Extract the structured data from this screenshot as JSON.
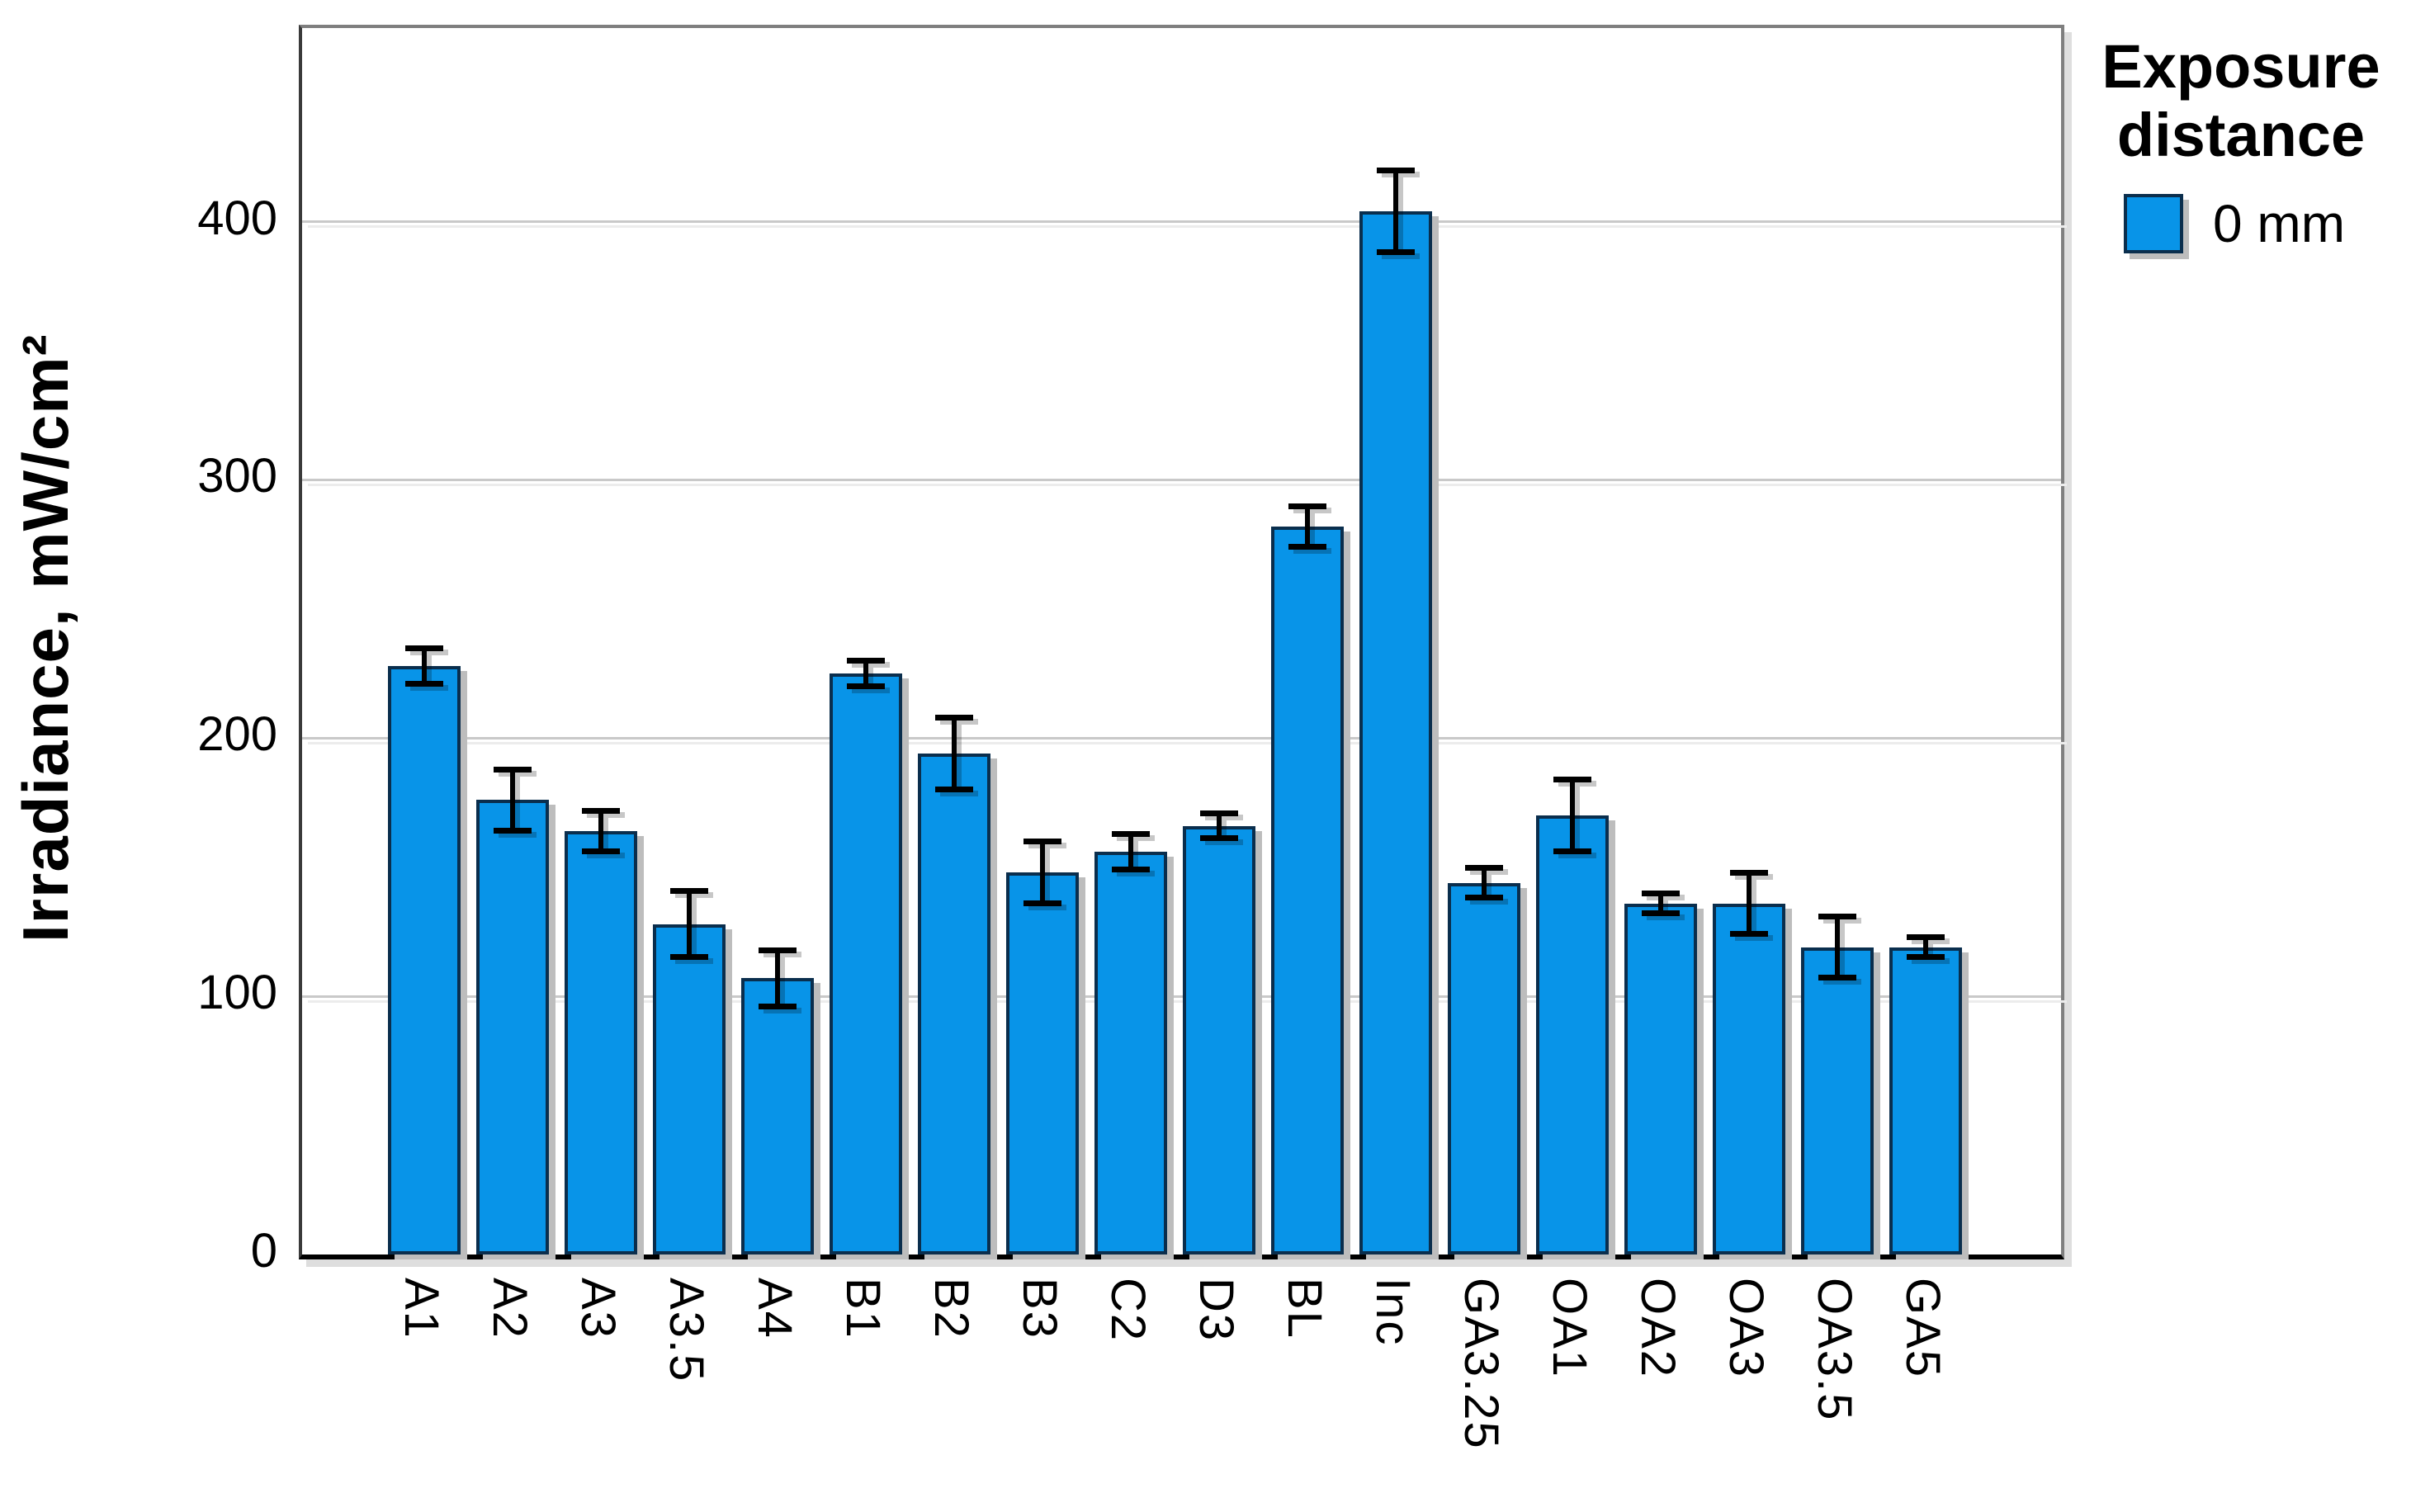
{
  "chart_data": {
    "type": "bar",
    "ylabel": "Irradiance, mW/cm²",
    "ylim": [
      0,
      475
    ],
    "yticks": [
      0,
      100,
      200,
      300,
      400
    ],
    "grid": "horizontal",
    "legend_position": "top-right",
    "categories": [
      "A1",
      "A2",
      "A3",
      "A3.5",
      "A4",
      "B1",
      "B2",
      "B3",
      "C2",
      "D3",
      "BL",
      "Inc",
      "GA3.25",
      "OA1",
      "OA2",
      "OA3",
      "OA3.5",
      "GA5"
    ],
    "series": [
      {
        "name": "0 mm",
        "values": [
          228,
          176,
          164,
          128,
          107,
          225,
          194,
          148,
          156,
          166,
          282,
          404,
          144,
          170,
          136,
          136,
          119,
          119
        ],
        "errors": [
          8,
          13,
          9,
          14,
          12,
          6,
          15,
          13,
          8,
          6,
          9,
          17,
          7,
          15,
          5,
          13,
          13,
          5
        ]
      }
    ],
    "legend": {
      "title_lines": [
        "Exposure",
        "distance"
      ],
      "items": [
        {
          "label": "0 mm",
          "swatch_color": "#0894E8"
        }
      ]
    },
    "colors": {
      "bar_fill": "#0894E8",
      "bar_border": "#0A2E4D",
      "error_bar": "#000000",
      "gridline": "#C9C9C9",
      "frame": "#7F7F7F",
      "axis_bottom": "#000000",
      "text": "#000000"
    }
  }
}
